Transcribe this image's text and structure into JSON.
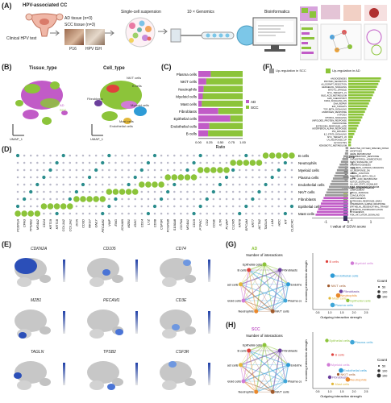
{
  "panels": {
    "A": "(A)",
    "B": "(B)",
    "C": "(C)",
    "D": "(D)",
    "E": "(E)",
    "F": "(F)",
    "G": "(G)",
    "H": "(H)"
  },
  "workflow": {
    "hpv_cc": "HPV-associated CC",
    "clinical_test": "Clinical HPV test",
    "ad_tissue": "AD tissue (n=3)",
    "scc_tissue": "SCC tissue (n=3)",
    "p16": "P16",
    "hpv_ish": "HPV ISH",
    "single_cell": "Single-cell suspension",
    "genomics": "10 × Genomics",
    "bioinformatics": "Bioinformatics"
  },
  "umap": {
    "tissue_title": "Tissue_type",
    "cell_title": "Cell_type",
    "legend_ad": "AD",
    "legend_scc": "SCC",
    "axis1": "UMAP_1",
    "axis2": "UMAP_2",
    "cell_labels": [
      "NK/T cells",
      "B cells",
      "Fibroblasts",
      "Myeloid cells",
      "Mast cells",
      "Endothelial cells",
      "Epithelial cells",
      "Plasma cells"
    ]
  },
  "colors": {
    "ad": "#c15bc7",
    "scc": "#8cc43a",
    "bar_scc": "#9a9a9a"
  },
  "chart_data": [
    {
      "type": "bar",
      "orientation": "horizontal",
      "categories": [
        "Plasma cells",
        "NK/T cells",
        "Neutrophils",
        "Myeloid cells",
        "Mast cells",
        "Fibroblasts",
        "Epithelial cells",
        "Endothelial cells",
        "B cells"
      ],
      "series": [
        {
          "name": "AD",
          "values": [
            0.28,
            0.18,
            0.12,
            0.1,
            0.08,
            0.45,
            0.72,
            0.25,
            0.22
          ]
        },
        {
          "name": "SCC",
          "values": [
            0.72,
            0.82,
            0.88,
            0.9,
            0.92,
            0.55,
            0.28,
            0.75,
            0.78
          ]
        }
      ],
      "xlabel": "Ratio",
      "xticks": [
        "0.00",
        "0.25",
        "0.50",
        "0.75",
        "1.00"
      ],
      "xlim": [
        0,
        1
      ],
      "legend": "right"
    },
    {
      "type": "bar",
      "orientation": "horizontal",
      "legend_scc": "Up-regulation in SCC",
      "legend_ad": "Up-regulation in AD",
      "xlabel": "t value of GSVA score",
      "xticks": [
        "-1",
        "0",
        "1"
      ],
      "xlim": [
        -1.6,
        1.6
      ]
    }
  ],
  "dotplot": {
    "rows": [
      "B cells",
      "Neutrophils",
      "Myeloid cells",
      "Plasma cells",
      "Endothelial cells",
      "NK/T cells",
      "Fibroblasts",
      "Epithelial cells",
      "Mast cells"
    ],
    "legend_pct": "PctExp",
    "pct_values": [
      "0",
      "25",
      "50",
      "75"
    ],
    "legend_avg": "Average Expression",
    "avg_values": [
      "2",
      "1",
      "0",
      "-1"
    ],
    "genes": [
      "FCER1A",
      "CPA3",
      "TPSAB1",
      "MS4A2",
      "CD24",
      "KRT19",
      "KRT18",
      "COL1A2",
      "COL1A1",
      "DCN",
      "CD3D",
      "NKG7",
      "GNLY",
      "PECAM1",
      "VWF",
      "ENG",
      "JCHAIN",
      "MZB1",
      "IGKC",
      "CD14",
      "LYZ",
      "CD68",
      "CSF3R",
      "FCGR3B",
      "S100A8",
      "CD79A",
      "MS4A1",
      "CD19",
      "PTPRC",
      "CD2",
      "CD3E",
      "IL7R",
      "PLVAP",
      "CLDN5",
      "KRT8",
      "EPCAM",
      "KRT7",
      "ACTA2",
      "TAGLN",
      "LUM",
      "HDC",
      "KIT",
      "CLEC4C"
    ]
  },
  "feature_plots": [
    "CDKN2A",
    "CD105",
    "CD74",
    "MZB1",
    "PECAM1",
    "CD3E",
    "TAGLN",
    "TPSB2",
    "CSF3R"
  ],
  "gsva_terms": [
    "ANGIOGENESIS",
    "PROTEIN_SECRETION",
    "ALLOGRAFT_REJECTION",
    "HEDGEHOG_SIGNALING",
    "MITOTIC_SPINDLE",
    "MYC_TARGETS_V1",
    "BILE_ACID_METABOLISM",
    "G2M_CHECKPOINT",
    "KRAS_SIGNALING_DN",
    "DNA_REPAIR",
    "E2F_TARGETS",
    "TGF_BETA_SIGNALING",
    "ANDROGEN_RESPONSE",
    "HYPOXIA",
    "MTORC1_SIGNALING",
    "UNFOLDED_PROTEIN_RESPONSE",
    "PEROXISOME",
    "ESTROGEN_RESPONSE_LATE",
    "INTERFERON_ALPHA_RESPONSE",
    "P53_PATHWAY",
    "IL2_STAT5_SIGNALING",
    "MYC_TARGETS_V2",
    "UV_RESPONSE_UP",
    "GLYCOLYSIS",
    "XENOBIOTIC_METABOLISM",
    "REACTIVE_OXYGEN_SPECIES_PATHWAY",
    "APOPTOSIS",
    "HEME_METABOLISM",
    "INFLAMMATORY_RESPONSE",
    "CHOLESTEROL_HOMEOSTASIS",
    "KRAS_SIGNALING_UP",
    "SPERMATOGENESIS",
    "WNT_BETA_CATENIN_SIGNALING",
    "UV_RESPONSE_DN",
    "APICAL_JUNCTION",
    "PANCREAS_BETA_CELLS",
    "FATTY_ACID_METABOLISM",
    "NOTCH_SIGNALING",
    "IL6_JAK_STAT3_SIGNALING",
    "TNFA_SIGNALING_VIA_NFKB",
    "COMPLEMENT",
    "APICAL_SURFACE",
    "COAGULATION",
    "ADIPOGENESIS",
    "ESTROGEN_RESPONSE_EARLY",
    "INTERFERON_GAMMA_RESPONSE",
    "EPITHELIAL_MESENCHYMAL_TRANSITION",
    "OXIDATIVE_PHOSPHORYLATION",
    "MYOGENESIS",
    "PI3K_AKT_MTOR_SIGNALING"
  ],
  "network": {
    "g_title": "AD",
    "h_title": "SCC",
    "number_interactions": "Number of interactions",
    "nodes": [
      "Epithelial cells",
      "Fibroblasts",
      "Endothelial cells",
      "Plasma cells",
      "NK/T cells",
      "Neutrophils",
      "Myeloid cells",
      "Mast cells",
      "B cells"
    ],
    "outgoing": "Outgoing interaction strength",
    "incoming": "Incoming interaction strength",
    "count": "Count",
    "count_values": [
      "50",
      "100",
      "150"
    ]
  },
  "scatter_g": {
    "points": [
      {
        "label": "B cells",
        "color": "#e0413c"
      },
      {
        "label": "Myeloid cells",
        "color": "#d17bd6"
      },
      {
        "label": "Endothelial cells",
        "color": "#2e9bd6"
      },
      {
        "label": "NK/T cells",
        "color": "#a05a2c"
      },
      {
        "label": "Fibroblasts",
        "color": "#6b3f9c"
      },
      {
        "label": "Neutrophils",
        "color": "#e9882b"
      },
      {
        "label": "Mast cells",
        "color": "#e2b83a"
      },
      {
        "label": "Epithelial cells",
        "color": "#8cc43a"
      },
      {
        "label": "Plasma cells",
        "color": "#3fa6d8"
      }
    ],
    "xticks": [
      "0.5",
      "1.0",
      "1.5",
      "2.0",
      "2.5"
    ]
  }
}
